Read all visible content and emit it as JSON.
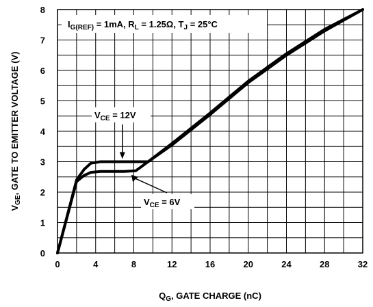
{
  "chart_data": {
    "type": "line",
    "title": "",
    "condition_label": {
      "parts": [
        {
          "text": "I",
          "sub": false
        },
        {
          "text": "G(REF)",
          "sub": true
        },
        {
          "text": " = 1mA, R",
          "sub": false
        },
        {
          "text": "L",
          "sub": true
        },
        {
          "text": " = 1.25Ω,  T",
          "sub": false
        },
        {
          "text": "J",
          "sub": true
        },
        {
          "text": " = 25°C",
          "sub": false
        }
      ]
    },
    "xlabel": {
      "parts": [
        {
          "text": "Q",
          "sub": false
        },
        {
          "text": "G",
          "sub": true
        },
        {
          "text": ", GATE CHARGE (nC)",
          "sub": false
        }
      ]
    },
    "ylabel": {
      "parts": [
        {
          "text": "V",
          "sub": false
        },
        {
          "text": "GE",
          "sub": true
        },
        {
          "text": ", GATE TO EMITTER VOLTAGE (V)",
          "sub": false
        }
      ]
    },
    "xlim": [
      0,
      32
    ],
    "ylim": [
      0,
      8
    ],
    "x_ticks": [
      0,
      4,
      8,
      12,
      16,
      20,
      24,
      28,
      32
    ],
    "y_ticks": [
      0,
      1,
      2,
      3,
      4,
      5,
      6,
      7,
      8
    ],
    "grid": true,
    "series": [
      {
        "label_parts": [
          {
            "text": "V",
            "sub": false
          },
          {
            "text": "CE",
            "sub": true
          },
          {
            "text": " = 12V",
            "sub": false
          }
        ],
        "points": [
          [
            0,
            0
          ],
          [
            2,
            2.4
          ],
          [
            2.8,
            2.75
          ],
          [
            3.5,
            2.95
          ],
          [
            4.5,
            3.0
          ],
          [
            8,
            3.0
          ],
          [
            9.5,
            3.0
          ],
          [
            12,
            3.6
          ],
          [
            16,
            4.6
          ],
          [
            20,
            5.65
          ],
          [
            24,
            6.55
          ],
          [
            28,
            7.35
          ],
          [
            32,
            8.0
          ]
        ]
      },
      {
        "label_parts": [
          {
            "text": "V",
            "sub": false
          },
          {
            "text": "CE",
            "sub": true
          },
          {
            "text": " = 6V",
            "sub": false
          }
        ],
        "points": [
          [
            0,
            0
          ],
          [
            2,
            2.35
          ],
          [
            2.8,
            2.55
          ],
          [
            3.5,
            2.65
          ],
          [
            4.5,
            2.68
          ],
          [
            7,
            2.68
          ],
          [
            8.2,
            2.7
          ],
          [
            9.5,
            3.0
          ],
          [
            12,
            3.55
          ],
          [
            16,
            4.55
          ],
          [
            20,
            5.6
          ],
          [
            24,
            6.5
          ],
          [
            28,
            7.3
          ],
          [
            32,
            8.0
          ]
        ]
      }
    ]
  }
}
